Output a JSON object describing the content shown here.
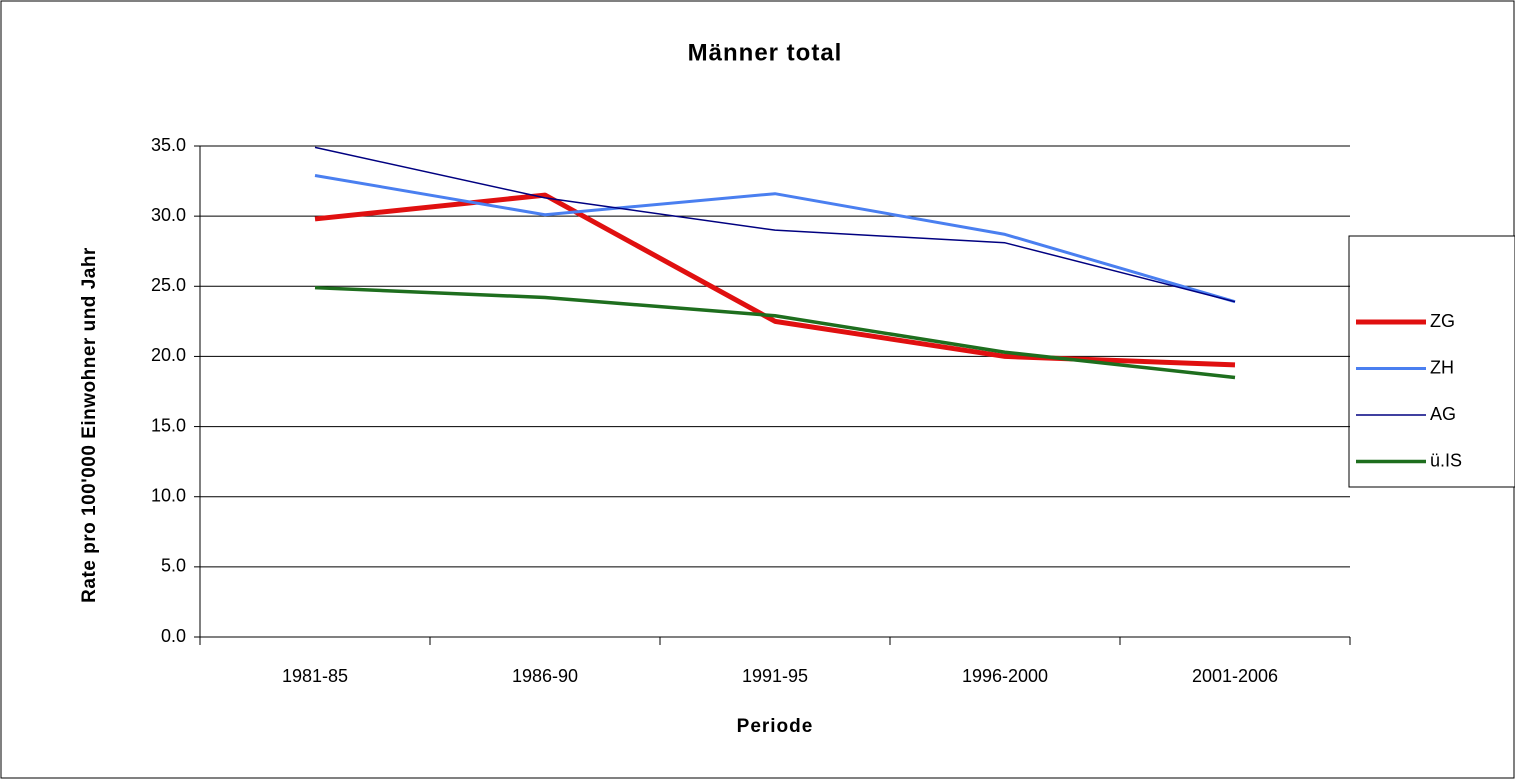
{
  "chart_data": {
    "type": "line",
    "title": "Männer total",
    "x_label": "Periode",
    "y_label": "Rate pro 100'000 Einwohner und Jahr",
    "categories": [
      "1981-85",
      "1986-90",
      "1991-95",
      "1996-2000",
      "2001-2006"
    ],
    "series": [
      {
        "name": "ZG",
        "color": "#e01010",
        "values": [
          29.8,
          31.5,
          22.5,
          20.0,
          19.4
        ]
      },
      {
        "name": "ZH",
        "color": "#4a7ff0",
        "values": [
          32.9,
          30.1,
          31.6,
          28.7,
          23.9
        ]
      },
      {
        "name": "AG",
        "color": "#000080",
        "values": [
          34.9,
          31.3,
          29.0,
          28.1,
          23.9
        ]
      },
      {
        "name": "ü.IS",
        "color": "#1e6e1e",
        "values": [
          24.9,
          24.2,
          22.9,
          20.3,
          18.5
        ]
      }
    ],
    "ylim": [
      0,
      35
    ],
    "yticks": [
      {
        "value": 0,
        "label": "0.0"
      },
      {
        "value": 5,
        "label": "5.0"
      },
      {
        "value": 10,
        "label": "10.0"
      },
      {
        "value": 15,
        "label": "15.0"
      },
      {
        "value": 20,
        "label": "20.0"
      },
      {
        "value": 25,
        "label": "25.0"
      },
      {
        "value": 30,
        "label": "30.0"
      },
      {
        "value": 35,
        "label": "35.0"
      }
    ],
    "grid": true,
    "legend": "right"
  }
}
